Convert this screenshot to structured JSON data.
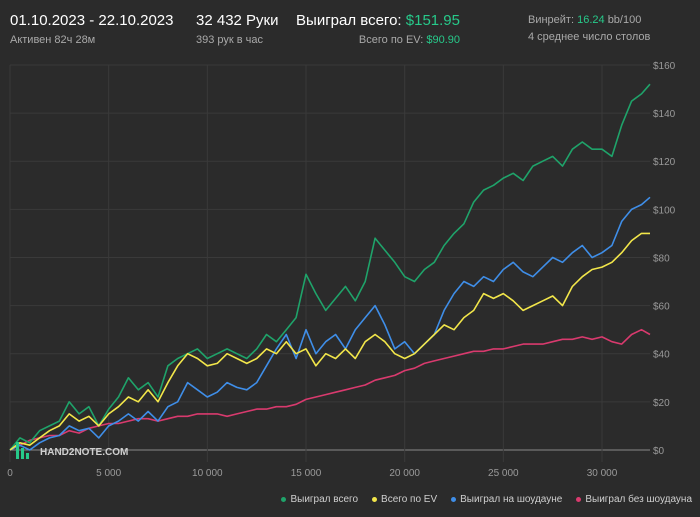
{
  "header": {
    "date_range": "01.10.2023 - 22.10.2023",
    "active_time": "Активен 82ч 28м",
    "hands": "32 432 Руки",
    "hands_per_hour": "393 рук в час",
    "won_total_label": "Выиграл всего:",
    "won_total_value": "$151.95",
    "ev_total_label": "Всего по EV:",
    "ev_total_value": "$90.90",
    "winrate_label": "Винрейт:",
    "winrate_value": "16.24",
    "winrate_suffix": "bb/100",
    "avg_tables": "4 среднее число столов"
  },
  "colors": {
    "background": "#2b2b2b",
    "grid": "#3a3a3a",
    "accent_green": "#27c98a",
    "won_total": "#1fa36a",
    "ev_total": "#f2e64a",
    "showdown": "#3f8ee8",
    "non_showdown": "#d93a6e"
  },
  "watermark": "HAND2NOTE.COM",
  "chart_data": {
    "type": "line",
    "xlim": [
      0,
      32432
    ],
    "ylim": [
      -5,
      160
    ],
    "x_ticks": [
      0,
      5000,
      10000,
      15000,
      20000,
      25000,
      30000
    ],
    "x_tick_labels": [
      "0",
      "5 000",
      "10 000",
      "15 000",
      "20 000",
      "25 000",
      "30 000"
    ],
    "y_ticks": [
      0,
      20,
      40,
      60,
      80,
      100,
      120,
      140,
      160
    ],
    "y_tick_labels": [
      "$0",
      "$20",
      "$40",
      "$60",
      "$80",
      "$100",
      "$120",
      "$140",
      "$160"
    ],
    "grid": true,
    "legend_position": "bottom-right",
    "series": [
      {
        "name": "Выиграл всего",
        "color": "#1fa36a",
        "x": [
          0,
          500,
          1000,
          1500,
          2000,
          2500,
          3000,
          3500,
          4000,
          4500,
          5000,
          5500,
          6000,
          6500,
          7000,
          7500,
          8000,
          8500,
          9000,
          9500,
          10000,
          10500,
          11000,
          11500,
          12000,
          12500,
          13000,
          13500,
          14000,
          14500,
          15000,
          15500,
          16000,
          16500,
          17000,
          17500,
          18000,
          18500,
          19000,
          19500,
          20000,
          20500,
          21000,
          21500,
          22000,
          22500,
          23000,
          23500,
          24000,
          24500,
          25000,
          25500,
          26000,
          26500,
          27000,
          27500,
          28000,
          28500,
          29000,
          29500,
          30000,
          30500,
          31000,
          31500,
          32000,
          32432
        ],
        "y": [
          0,
          5,
          3,
          8,
          10,
          12,
          20,
          15,
          18,
          10,
          17,
          22,
          30,
          25,
          28,
          22,
          35,
          38,
          40,
          42,
          38,
          40,
          42,
          40,
          38,
          42,
          48,
          45,
          50,
          55,
          73,
          65,
          58,
          63,
          68,
          62,
          70,
          88,
          83,
          78,
          72,
          70,
          75,
          78,
          85,
          90,
          94,
          103,
          108,
          110,
          113,
          115,
          112,
          118,
          120,
          122,
          118,
          125,
          128,
          125,
          125,
          122,
          135,
          145,
          148,
          152
        ]
      },
      {
        "name": "Всего по EV",
        "color": "#f2e64a",
        "x": [
          0,
          500,
          1000,
          1500,
          2000,
          2500,
          3000,
          3500,
          4000,
          4500,
          5000,
          5500,
          6000,
          6500,
          7000,
          7500,
          8000,
          8500,
          9000,
          9500,
          10000,
          10500,
          11000,
          11500,
          12000,
          12500,
          13000,
          13500,
          14000,
          14500,
          15000,
          15500,
          16000,
          16500,
          17000,
          17500,
          18000,
          18500,
          19000,
          19500,
          20000,
          20500,
          21000,
          21500,
          22000,
          22500,
          23000,
          23500,
          24000,
          24500,
          25000,
          25500,
          26000,
          26500,
          27000,
          27500,
          28000,
          28500,
          29000,
          29500,
          30000,
          30500,
          31000,
          31500,
          32000,
          32432
        ],
        "y": [
          0,
          3,
          2,
          5,
          8,
          10,
          15,
          12,
          14,
          10,
          15,
          18,
          22,
          20,
          25,
          20,
          28,
          35,
          40,
          38,
          35,
          36,
          40,
          38,
          36,
          38,
          42,
          40,
          45,
          40,
          42,
          35,
          40,
          38,
          42,
          38,
          45,
          48,
          45,
          40,
          38,
          40,
          44,
          48,
          52,
          50,
          55,
          58,
          65,
          63,
          65,
          62,
          58,
          60,
          62,
          64,
          60,
          68,
          72,
          75,
          76,
          78,
          82,
          87,
          90,
          90
        ]
      },
      {
        "name": "Выиграл на шоудауне",
        "color": "#3f8ee8",
        "x": [
          0,
          500,
          1000,
          1500,
          2000,
          2500,
          3000,
          3500,
          4000,
          4500,
          5000,
          5500,
          6000,
          6500,
          7000,
          7500,
          8000,
          8500,
          9000,
          9500,
          10000,
          10500,
          11000,
          11500,
          12000,
          12500,
          13000,
          13500,
          14000,
          14500,
          15000,
          15500,
          16000,
          16500,
          17000,
          17500,
          18000,
          18500,
          19000,
          19500,
          20000,
          20500,
          21000,
          21500,
          22000,
          22500,
          23000,
          23500,
          24000,
          24500,
          25000,
          25500,
          26000,
          26500,
          27000,
          27500,
          28000,
          28500,
          29000,
          29500,
          30000,
          30500,
          31000,
          31500,
          32000,
          32432
        ],
        "y": [
          0,
          2,
          0,
          3,
          5,
          6,
          10,
          8,
          9,
          5,
          10,
          12,
          15,
          12,
          16,
          12,
          18,
          20,
          28,
          25,
          22,
          24,
          28,
          26,
          25,
          28,
          35,
          42,
          48,
          38,
          50,
          40,
          45,
          48,
          42,
          50,
          55,
          60,
          52,
          42,
          45,
          40,
          44,
          48,
          58,
          65,
          70,
          68,
          72,
          70,
          75,
          78,
          74,
          72,
          76,
          80,
          78,
          82,
          85,
          80,
          82,
          85,
          95,
          100,
          102,
          105
        ]
      },
      {
        "name": "Выиграл без шоудауна",
        "color": "#d93a6e",
        "x": [
          0,
          500,
          1000,
          1500,
          2000,
          2500,
          3000,
          3500,
          4000,
          4500,
          5000,
          5500,
          6000,
          6500,
          7000,
          7500,
          8000,
          8500,
          9000,
          9500,
          10000,
          10500,
          11000,
          11500,
          12000,
          12500,
          13000,
          13500,
          14000,
          14500,
          15000,
          15500,
          16000,
          16500,
          17000,
          17500,
          18000,
          18500,
          19000,
          19500,
          20000,
          20500,
          21000,
          21500,
          22000,
          22500,
          23000,
          23500,
          24000,
          24500,
          25000,
          25500,
          26000,
          26500,
          27000,
          27500,
          28000,
          28500,
          29000,
          29500,
          30000,
          30500,
          31000,
          31500,
          32000,
          32432
        ],
        "y": [
          0,
          2,
          4,
          5,
          6,
          6,
          8,
          7,
          9,
          10,
          11,
          11,
          12,
          13,
          13,
          12,
          13,
          14,
          14,
          15,
          15,
          15,
          14,
          15,
          16,
          17,
          17,
          18,
          18,
          19,
          21,
          22,
          23,
          24,
          25,
          26,
          27,
          29,
          30,
          31,
          33,
          34,
          36,
          37,
          38,
          39,
          40,
          41,
          41,
          42,
          42,
          43,
          44,
          44,
          44,
          45,
          46,
          46,
          47,
          46,
          47,
          45,
          44,
          48,
          50,
          48
        ]
      }
    ]
  }
}
